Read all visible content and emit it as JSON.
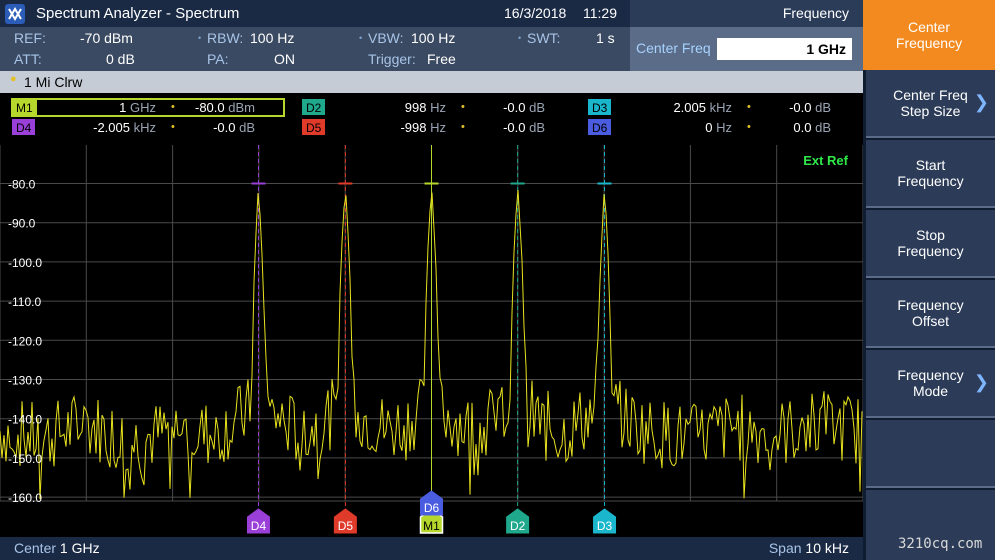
{
  "header": {
    "title": "Spectrum Analyzer - Spectrum",
    "date": "16/3/2018",
    "time": "11:29",
    "menu_title": "Frequency"
  },
  "params": {
    "ref_label": "REF:",
    "ref_value": "-70 dBm",
    "att_label": "ATT:",
    "att_value": "0 dB",
    "rbw_label": "RBW:",
    "rbw_value": "100 Hz",
    "pa_label": "PA:",
    "pa_value": "ON",
    "vbw_label": "VBW:",
    "vbw_value": "100 Hz",
    "trigger_label": "Trigger:",
    "trigger_value": "Free",
    "swt_label": "SWT:",
    "swt_value": "1 s"
  },
  "center_freq": {
    "label": "Center Freq",
    "value": "1 GHz"
  },
  "trace": {
    "label": "1 Mi  Clrw"
  },
  "markers": [
    {
      "id": "M1",
      "freq": "1",
      "freq_unit": "GHz",
      "level": "-80.0",
      "level_unit": "dBm",
      "color": "#b6d82c"
    },
    {
      "id": "D2",
      "freq": "998",
      "freq_unit": "Hz",
      "level": "-0.0",
      "level_unit": "dB",
      "color": "#1fa88c"
    },
    {
      "id": "D3",
      "freq": "2.005",
      "freq_unit": "kHz",
      "level": "-0.0",
      "level_unit": "dB",
      "color": "#1ab6cc"
    },
    {
      "id": "D4",
      "freq": "-2.005",
      "freq_unit": "kHz",
      "level": "-0.0",
      "level_unit": "dB",
      "color": "#9a3fd8"
    },
    {
      "id": "D5",
      "freq": "-998",
      "freq_unit": "Hz",
      "level": "-0.0",
      "level_unit": "dB",
      "color": "#e03a2a"
    },
    {
      "id": "D6",
      "freq": "0",
      "freq_unit": "Hz",
      "level": "0.0",
      "level_unit": "dB",
      "color": "#4a5ce0"
    }
  ],
  "chart_data": {
    "type": "line",
    "title": "",
    "xlabel": "",
    "ylabel": "",
    "x_range_hz_offset": [
      -5000,
      5000
    ],
    "ylim": [
      -170,
      -70
    ],
    "y_ticks": [
      "-80.0",
      "-90.0",
      "-100.0",
      "-110.0",
      "-120.0",
      "-130.0",
      "-140.0",
      "-150.0",
      "-160.0"
    ],
    "grid": true,
    "annotation": "Ext Ref",
    "trace_color": "#e8e21e",
    "series": [
      {
        "x": [
          -5000,
          -4500,
          -4000,
          -3500,
          -3000,
          -2500,
          -2100,
          -2050,
          -2005,
          -1960,
          -1900,
          -1500,
          -1100,
          -1050,
          -998,
          -950,
          -900,
          -500,
          -100,
          -50,
          0,
          50,
          100,
          500,
          900,
          950,
          998,
          1050,
          1100,
          1500,
          1900,
          1960,
          2005,
          2050,
          2100,
          2500,
          3000,
          3500,
          4000,
          4500,
          5000
        ],
        "values": [
          -143,
          -145,
          -141,
          -146,
          -143,
          -144,
          -138,
          -100,
          -80,
          -100,
          -138,
          -144,
          -138,
          -100,
          -80,
          -100,
          -138,
          -143,
          -138,
          -100,
          -80,
          -100,
          -138,
          -143,
          -138,
          -100,
          -80,
          -100,
          -138,
          -144,
          -138,
          -100,
          -80,
          -100,
          -138,
          -143,
          -145,
          -142,
          -144,
          -141,
          -143
        ]
      }
    ],
    "markers": [
      {
        "id": "D4",
        "x": -2005,
        "y": -80.0
      },
      {
        "id": "D5",
        "x": -998,
        "y": -80.0
      },
      {
        "id": "M1",
        "x": 0,
        "y": -80.0
      },
      {
        "id": "D6",
        "x": 0,
        "y": -80.0
      },
      {
        "id": "D2",
        "x": 998,
        "y": -80.0
      },
      {
        "id": "D3",
        "x": 2005,
        "y": -80.0
      }
    ]
  },
  "footer": {
    "center_label": "Center",
    "center_value": "1 GHz",
    "span_label": "Span",
    "span_value": "10 kHz"
  },
  "softkeys": [
    {
      "label": "Center\nFrequency",
      "active": true,
      "chevron": false
    },
    {
      "label": "Center Freq\nStep Size",
      "active": false,
      "chevron": true
    },
    {
      "label": "Start\nFrequency",
      "active": false,
      "chevron": false
    },
    {
      "label": "Stop\nFrequency",
      "active": false,
      "chevron": false
    },
    {
      "label": "Frequency\nOffset",
      "active": false,
      "chevron": false
    },
    {
      "label": "Frequency\nMode",
      "active": false,
      "chevron": true
    }
  ],
  "watermark": "3210cq.com"
}
